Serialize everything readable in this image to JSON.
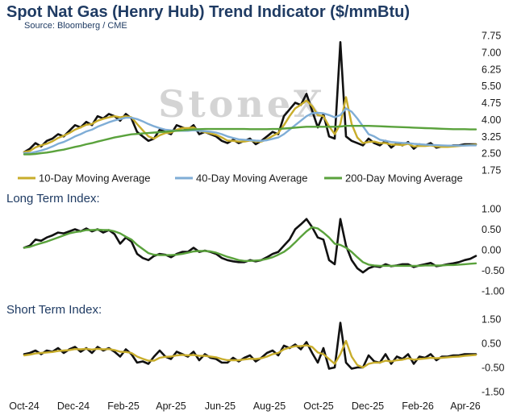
{
  "title": "Spot Nat Gas (Henry Hub) Trend Indicator ($/mmBtu)",
  "source": "Source: Bloomberg / CME",
  "watermark": "StoneX",
  "long_term_label": "Long Term Index:",
  "short_term_label": "Short Term Index:",
  "colors": {
    "spot": "#111111",
    "ma10": "#c8ad2b",
    "ma40": "#7fadd6",
    "ma200": "#5aa23c"
  },
  "chart_data": [
    {
      "type": "line",
      "panel": "price",
      "ylim": [
        1.75,
        7.75
      ],
      "yticks": [
        "7.75",
        "7.00",
        "6.25",
        "5.50",
        "4.75",
        "4.00",
        "3.25",
        "2.50",
        "1.75"
      ],
      "yticks_values": [
        7.75,
        7.0,
        6.25,
        5.5,
        4.75,
        4.0,
        3.25,
        2.5,
        1.75
      ],
      "x": [
        0,
        7,
        14,
        21,
        28,
        35,
        42,
        49,
        56,
        63,
        70,
        77,
        84,
        91,
        98,
        105,
        112,
        119,
        126,
        133,
        140,
        147,
        154,
        161,
        168,
        175,
        182,
        189,
        196,
        203,
        210,
        217,
        224,
        231,
        238,
        245,
        252,
        259,
        266,
        273,
        280,
        287,
        294,
        301,
        308,
        315,
        322,
        329,
        336,
        343,
        350,
        357,
        364,
        371,
        378,
        385,
        392,
        399,
        406,
        413,
        420,
        427,
        434,
        441,
        448,
        455,
        462,
        469,
        476,
        483,
        490,
        497,
        504,
        511,
        518,
        525,
        532,
        539,
        546,
        553,
        560
      ],
      "series": [
        {
          "name": "Spot",
          "color": "#111111",
          "values": [
            2.55,
            2.7,
            2.95,
            2.8,
            3.05,
            3.15,
            3.35,
            3.25,
            3.5,
            3.75,
            3.65,
            3.9,
            3.75,
            4.15,
            4.05,
            4.25,
            4.15,
            3.95,
            4.25,
            4.05,
            3.45,
            3.25,
            3.05,
            3.15,
            3.55,
            3.45,
            3.35,
            3.75,
            3.65,
            3.55,
            3.75,
            3.35,
            3.45,
            3.35,
            3.25,
            3.05,
            2.95,
            3.1,
            2.95,
            3.05,
            3.15,
            2.9,
            3.05,
            3.25,
            3.45,
            3.35,
            4.15,
            4.45,
            4.75,
            4.65,
            5.15,
            4.4,
            3.65,
            4.25,
            3.25,
            3.15,
            7.45,
            3.25,
            3.05,
            2.95,
            2.85,
            3.15,
            2.95,
            2.85,
            3.05,
            2.75,
            2.95,
            2.85,
            3.0,
            2.7,
            2.9,
            2.85,
            2.95,
            2.75,
            2.8,
            2.8,
            2.85,
            2.85,
            2.9,
            2.9,
            2.9
          ]
        },
        {
          "name": "10-Day Moving Average",
          "color": "#c8ad2b",
          "values": [
            2.55,
            2.6,
            2.76,
            2.85,
            2.92,
            3.03,
            3.18,
            3.28,
            3.4,
            3.55,
            3.65,
            3.77,
            3.8,
            3.95,
            4.03,
            4.1,
            4.15,
            4.1,
            4.15,
            4.1,
            3.8,
            3.52,
            3.25,
            3.15,
            3.3,
            3.4,
            3.42,
            3.55,
            3.62,
            3.62,
            3.65,
            3.5,
            3.44,
            3.38,
            3.32,
            3.2,
            3.06,
            3.05,
            3.02,
            3.02,
            3.06,
            3.02,
            3.02,
            3.12,
            3.27,
            3.4,
            3.75,
            4.15,
            4.5,
            4.66,
            4.85,
            4.6,
            4.2,
            4.15,
            3.7,
            3.35,
            3.8,
            5.0,
            3.8,
            3.2,
            2.95,
            3.0,
            3.02,
            2.95,
            2.95,
            2.88,
            2.88,
            2.86,
            2.92,
            2.8,
            2.82,
            2.82,
            2.85,
            2.8,
            2.78,
            2.78,
            2.8,
            2.82,
            2.85,
            2.86,
            2.88
          ]
        },
        {
          "name": "40-Day Moving Average",
          "color": "#7fadd6",
          "values": [
            2.5,
            2.5,
            2.56,
            2.62,
            2.7,
            2.8,
            2.92,
            3.0,
            3.12,
            3.25,
            3.35,
            3.47,
            3.55,
            3.68,
            3.78,
            3.88,
            3.96,
            4.02,
            4.08,
            4.08,
            4.02,
            3.92,
            3.8,
            3.7,
            3.62,
            3.55,
            3.52,
            3.5,
            3.5,
            3.5,
            3.52,
            3.5,
            3.48,
            3.46,
            3.42,
            3.35,
            3.25,
            3.18,
            3.12,
            3.1,
            3.08,
            3.06,
            3.05,
            3.08,
            3.14,
            3.2,
            3.35,
            3.55,
            3.75,
            3.95,
            4.15,
            4.28,
            4.3,
            4.28,
            4.2,
            4.1,
            4.2,
            4.5,
            4.35,
            4.05,
            3.7,
            3.35,
            3.25,
            3.1,
            3.05,
            3.0,
            2.98,
            2.96,
            2.95,
            2.92,
            2.9,
            2.88,
            2.87,
            2.86,
            2.85,
            2.84,
            2.84,
            2.84,
            2.84,
            2.85,
            2.85
          ]
        },
        {
          "name": "200-Day Moving Average",
          "color": "#5aa23c",
          "values": [
            2.45,
            2.45,
            2.47,
            2.5,
            2.53,
            2.57,
            2.62,
            2.66,
            2.72,
            2.78,
            2.83,
            2.9,
            2.95,
            3.02,
            3.08,
            3.14,
            3.2,
            3.25,
            3.3,
            3.34,
            3.36,
            3.38,
            3.4,
            3.42,
            3.44,
            3.46,
            3.48,
            3.5,
            3.52,
            3.54,
            3.56,
            3.57,
            3.58,
            3.58,
            3.58,
            3.58,
            3.58,
            3.58,
            3.58,
            3.58,
            3.57,
            3.57,
            3.57,
            3.57,
            3.58,
            3.58,
            3.6,
            3.62,
            3.64,
            3.66,
            3.68,
            3.68,
            3.68,
            3.68,
            3.68,
            3.68,
            3.69,
            3.72,
            3.72,
            3.72,
            3.72,
            3.72,
            3.71,
            3.7,
            3.69,
            3.68,
            3.67,
            3.66,
            3.65,
            3.64,
            3.63,
            3.62,
            3.61,
            3.6,
            3.59,
            3.58,
            3.57,
            3.57,
            3.57,
            3.56,
            3.56
          ]
        }
      ],
      "legend": [
        {
          "label": "10-Day Moving Average",
          "color": "#c8ad2b"
        },
        {
          "label": "40-Day Moving Average",
          "color": "#7fadd6"
        },
        {
          "label": "200-Day Moving Average",
          "color": "#5aa23c"
        }
      ]
    },
    {
      "type": "line",
      "panel": "long_term",
      "title": "Long Term Index:",
      "ylim": [
        -1.0,
        1.0
      ],
      "yticks": [
        "1.00",
        "0.50",
        "0.00",
        "-0.50",
        "-1.00"
      ],
      "yticks_values": [
        1.0,
        0.5,
        0.0,
        -0.5,
        -1.0
      ],
      "x": [
        0,
        7,
        14,
        21,
        28,
        35,
        42,
        49,
        56,
        63,
        70,
        77,
        84,
        91,
        98,
        105,
        112,
        119,
        126,
        133,
        140,
        147,
        154,
        161,
        168,
        175,
        182,
        189,
        196,
        203,
        210,
        217,
        224,
        231,
        238,
        245,
        252,
        259,
        266,
        273,
        280,
        287,
        294,
        301,
        308,
        315,
        322,
        329,
        336,
        343,
        350,
        357,
        364,
        371,
        378,
        385,
        392,
        399,
        406,
        413,
        420,
        427,
        434,
        441,
        448,
        455,
        462,
        469,
        476,
        483,
        490,
        497,
        504,
        511,
        518,
        525,
        532,
        539,
        546,
        553,
        560
      ],
      "series": [
        {
          "name": "Long Term Index",
          "color": "#111111",
          "values": [
            0.05,
            0.1,
            0.25,
            0.22,
            0.3,
            0.35,
            0.42,
            0.4,
            0.45,
            0.5,
            0.45,
            0.52,
            0.45,
            0.5,
            0.42,
            0.48,
            0.38,
            0.15,
            0.3,
            0.2,
            -0.1,
            -0.2,
            -0.25,
            -0.15,
            -0.1,
            -0.12,
            -0.18,
            -0.1,
            -0.05,
            -0.05,
            0.05,
            -0.05,
            -0.02,
            -0.05,
            -0.1,
            -0.2,
            -0.25,
            -0.28,
            -0.3,
            -0.3,
            -0.25,
            -0.28,
            -0.25,
            -0.18,
            -0.1,
            -0.05,
            0.1,
            0.25,
            0.5,
            0.62,
            0.75,
            0.55,
            0.3,
            0.25,
            -0.25,
            -0.35,
            0.75,
            0.1,
            -0.25,
            -0.45,
            -0.55,
            -0.45,
            -0.4,
            -0.42,
            -0.35,
            -0.4,
            -0.38,
            -0.35,
            -0.35,
            -0.42,
            -0.38,
            -0.35,
            -0.32,
            -0.4,
            -0.38,
            -0.35,
            -0.33,
            -0.3,
            -0.25,
            -0.22,
            -0.15
          ]
        },
        {
          "name": "Long Term Index Average",
          "color": "#5aa23c",
          "values": [
            0.05,
            0.07,
            0.12,
            0.16,
            0.2,
            0.25,
            0.3,
            0.35,
            0.4,
            0.43,
            0.45,
            0.48,
            0.48,
            0.49,
            0.48,
            0.48,
            0.45,
            0.4,
            0.32,
            0.25,
            0.12,
            0.02,
            -0.08,
            -0.12,
            -0.13,
            -0.13,
            -0.13,
            -0.12,
            -0.1,
            -0.07,
            -0.04,
            -0.03,
            -0.03,
            -0.04,
            -0.07,
            -0.12,
            -0.17,
            -0.21,
            -0.25,
            -0.27,
            -0.27,
            -0.26,
            -0.25,
            -0.22,
            -0.18,
            -0.12,
            -0.05,
            0.05,
            0.18,
            0.32,
            0.45,
            0.55,
            0.52,
            0.42,
            0.3,
            0.15,
            0.12,
            0.05,
            -0.05,
            -0.18,
            -0.3,
            -0.36,
            -0.38,
            -0.39,
            -0.39,
            -0.39,
            -0.39,
            -0.39,
            -0.39,
            -0.39,
            -0.39,
            -0.38,
            -0.38,
            -0.38,
            -0.38,
            -0.37,
            -0.37,
            -0.36,
            -0.35,
            -0.34,
            -0.33
          ]
        }
      ]
    },
    {
      "type": "line",
      "panel": "short_term",
      "title": "Short Term Index:",
      "ylim": [
        -1.5,
        1.5
      ],
      "yticks": [
        "1.50",
        "0.50",
        "-0.50",
        "-1.50"
      ],
      "yticks_values": [
        1.5,
        0.5,
        -0.5,
        -1.5
      ],
      "x_tick_labels": [
        "Oct-24",
        "Dec-24",
        "Feb-25",
        "Apr-25",
        "Jun-25",
        "Aug-25",
        "Oct-25",
        "Dec-25",
        "Feb-26",
        "Apr-26"
      ],
      "x_tick_values": [
        0,
        61,
        123,
        182,
        243,
        304,
        365,
        426,
        488,
        547
      ],
      "x": [
        0,
        7,
        14,
        21,
        28,
        35,
        42,
        49,
        56,
        63,
        70,
        77,
        84,
        91,
        98,
        105,
        112,
        119,
        126,
        133,
        140,
        147,
        154,
        161,
        168,
        175,
        182,
        189,
        196,
        203,
        210,
        217,
        224,
        231,
        238,
        245,
        252,
        259,
        266,
        273,
        280,
        287,
        294,
        301,
        308,
        315,
        322,
        329,
        336,
        343,
        350,
        357,
        364,
        371,
        378,
        385,
        392,
        399,
        406,
        413,
        420,
        427,
        434,
        441,
        448,
        455,
        462,
        469,
        476,
        483,
        490,
        497,
        504,
        511,
        518,
        525,
        532,
        539,
        546,
        553,
        560
      ],
      "series": [
        {
          "name": "Short Term Index",
          "color": "#111111",
          "values": [
            0.05,
            0.1,
            0.2,
            0.05,
            0.2,
            0.15,
            0.3,
            0.1,
            0.25,
            0.35,
            0.15,
            0.3,
            0.1,
            0.35,
            0.2,
            0.3,
            0.15,
            -0.05,
            0.25,
            0.05,
            -0.3,
            -0.25,
            -0.35,
            -0.05,
            0.2,
            -0.05,
            -0.15,
            0.15,
            0.05,
            -0.05,
            0.15,
            -0.2,
            0.05,
            -0.1,
            -0.15,
            -0.3,
            -0.3,
            -0.1,
            -0.25,
            -0.1,
            0.0,
            -0.25,
            -0.1,
            0.1,
            0.2,
            0.0,
            0.4,
            0.3,
            0.45,
            0.25,
            0.55,
            0.1,
            -0.3,
            0.3,
            -0.55,
            -0.5,
            1.35,
            -0.3,
            -0.55,
            -0.5,
            -0.5,
            0.0,
            -0.25,
            -0.3,
            0.05,
            -0.35,
            -0.05,
            -0.15,
            0.05,
            -0.35,
            -0.05,
            -0.1,
            0.05,
            -0.2,
            -0.05,
            -0.05,
            0.0,
            0.0,
            0.05,
            0.05,
            0.05
          ]
        },
        {
          "name": "Short Term Index Average",
          "color": "#c8ad2b",
          "values": [
            0.0,
            0.03,
            0.08,
            0.1,
            0.12,
            0.14,
            0.18,
            0.2,
            0.22,
            0.26,
            0.25,
            0.27,
            0.24,
            0.27,
            0.25,
            0.26,
            0.22,
            0.15,
            0.14,
            0.1,
            -0.05,
            -0.14,
            -0.22,
            -0.22,
            -0.1,
            -0.06,
            -0.05,
            0.0,
            0.02,
            0.0,
            0.02,
            -0.02,
            -0.02,
            -0.05,
            -0.08,
            -0.15,
            -0.2,
            -0.2,
            -0.2,
            -0.17,
            -0.14,
            -0.15,
            -0.12,
            -0.05,
            0.05,
            0.1,
            0.25,
            0.32,
            0.38,
            0.38,
            0.42,
            0.35,
            0.12,
            0.05,
            -0.15,
            -0.35,
            0.05,
            0.6,
            -0.05,
            -0.4,
            -0.5,
            -0.35,
            -0.3,
            -0.3,
            -0.22,
            -0.25,
            -0.2,
            -0.18,
            -0.12,
            -0.18,
            -0.15,
            -0.13,
            -0.1,
            -0.12,
            -0.1,
            -0.08,
            -0.06,
            -0.05,
            -0.02,
            0.0,
            0.02
          ]
        }
      ]
    }
  ]
}
